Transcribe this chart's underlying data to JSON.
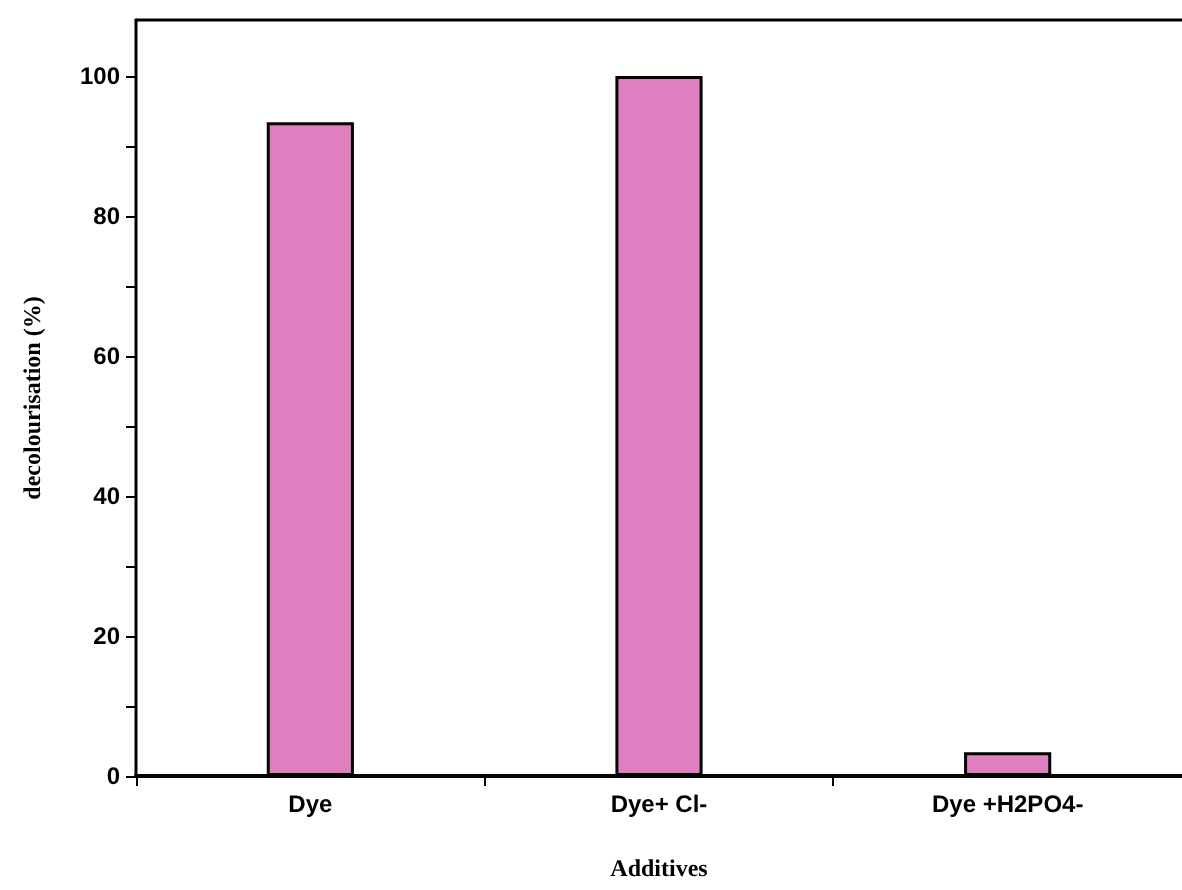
{
  "chart_data": {
    "type": "bar",
    "xlabel": "Additives",
    "ylabel": "decolourisation (%)",
    "categories": [
      "Dye",
      "Dye+ Cl-",
      "Dye +H2PO4-"
    ],
    "values": [
      93.4,
      100,
      3.4
    ],
    "color": "#df7fbf",
    "ylim": [
      0,
      108
    ],
    "yticks": [
      0,
      20,
      40,
      60,
      80,
      100
    ],
    "grid": false
  }
}
